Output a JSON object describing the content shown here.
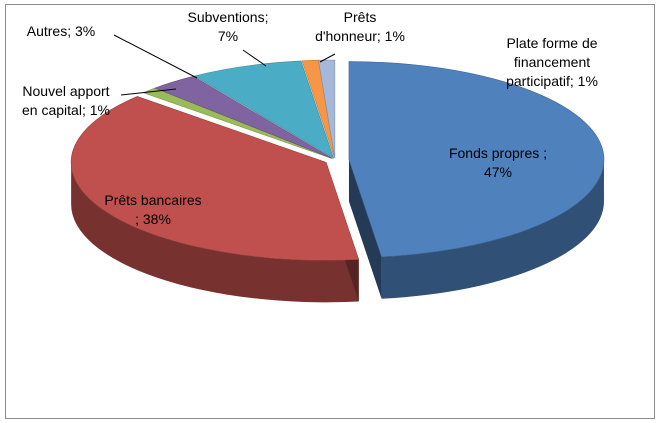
{
  "chart_data": {
    "type": "pie",
    "style": "3d-exploded",
    "title": "",
    "legend": "none",
    "slices": [
      {
        "category": "Fonds propres",
        "value": 47,
        "label_lines": [
          "Fonds propres ;",
          "47%"
        ],
        "color": "#4f81bd"
      },
      {
        "category": "Prêts bancaires",
        "value": 38,
        "label_lines": [
          "Prêts bancaires",
          "; 38%"
        ],
        "color": "#c0504d"
      },
      {
        "category": "Nouvel apport en capital",
        "value": 1,
        "label_lines": [
          "Nouvel apport",
          "en capital; 1%"
        ],
        "color": "#9bbb59"
      },
      {
        "category": "Autres",
        "value": 3,
        "label_lines": [
          "Autres; 3%"
        ],
        "color": "#8064a2"
      },
      {
        "category": "Subventions",
        "value": 7,
        "label_lines": [
          "Subventions;",
          "7%"
        ],
        "color": "#4bacc6"
      },
      {
        "category": "Prêts d'honneur",
        "value": 1,
        "label_lines": [
          "Prêts",
          "d'honneur; 1%"
        ],
        "color": "#f79646"
      },
      {
        "category": "Plate forme de financement participatif",
        "value": 1,
        "label_lines": [
          "Plate forme de",
          "financement",
          "participatif; 1%"
        ],
        "color": "#a5b8d9"
      }
    ]
  }
}
